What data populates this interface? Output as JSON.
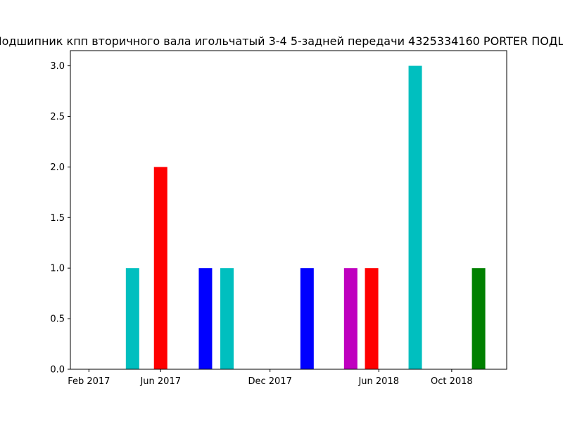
{
  "chart_data": {
    "type": "bar",
    "title": "Подшипник кпп вторичного вала игольчатый 3-4 5-задней передачи 4325334160 PORTER ПОДШ",
    "xlabel": "",
    "ylabel": "",
    "ylim": [
      0,
      3.15
    ],
    "yticks": [
      "0.0",
      "0.5",
      "1.0",
      "1.5",
      "2.0",
      "2.5",
      "3.0"
    ],
    "xticks": [
      "Feb 2017",
      "Jun 2017",
      "Dec 2017",
      "Jun 2018",
      "Oct 2018"
    ],
    "xtick_dates": [
      "2017-02-01",
      "2017-06-01",
      "2017-12-01",
      "2018-06-01",
      "2018-10-01"
    ],
    "xlim": [
      "2017-01-01",
      "2019-01-01"
    ],
    "grid": false,
    "bars": [
      {
        "date": "2017-04-15",
        "value": 1,
        "color": "#00bfbf"
      },
      {
        "date": "2017-06-01",
        "value": 2,
        "color": "#ff0000"
      },
      {
        "date": "2017-08-15",
        "value": 1,
        "color": "#0000ff"
      },
      {
        "date": "2017-09-20",
        "value": 1,
        "color": "#00bfbf"
      },
      {
        "date": "2018-02-01",
        "value": 1,
        "color": "#0000ff"
      },
      {
        "date": "2018-04-15",
        "value": 1,
        "color": "#bf00bf"
      },
      {
        "date": "2018-05-20",
        "value": 1,
        "color": "#ff0000"
      },
      {
        "date": "2018-08-01",
        "value": 3,
        "color": "#00bfbf"
      },
      {
        "date": "2018-11-15",
        "value": 1,
        "color": "#008000"
      }
    ]
  }
}
